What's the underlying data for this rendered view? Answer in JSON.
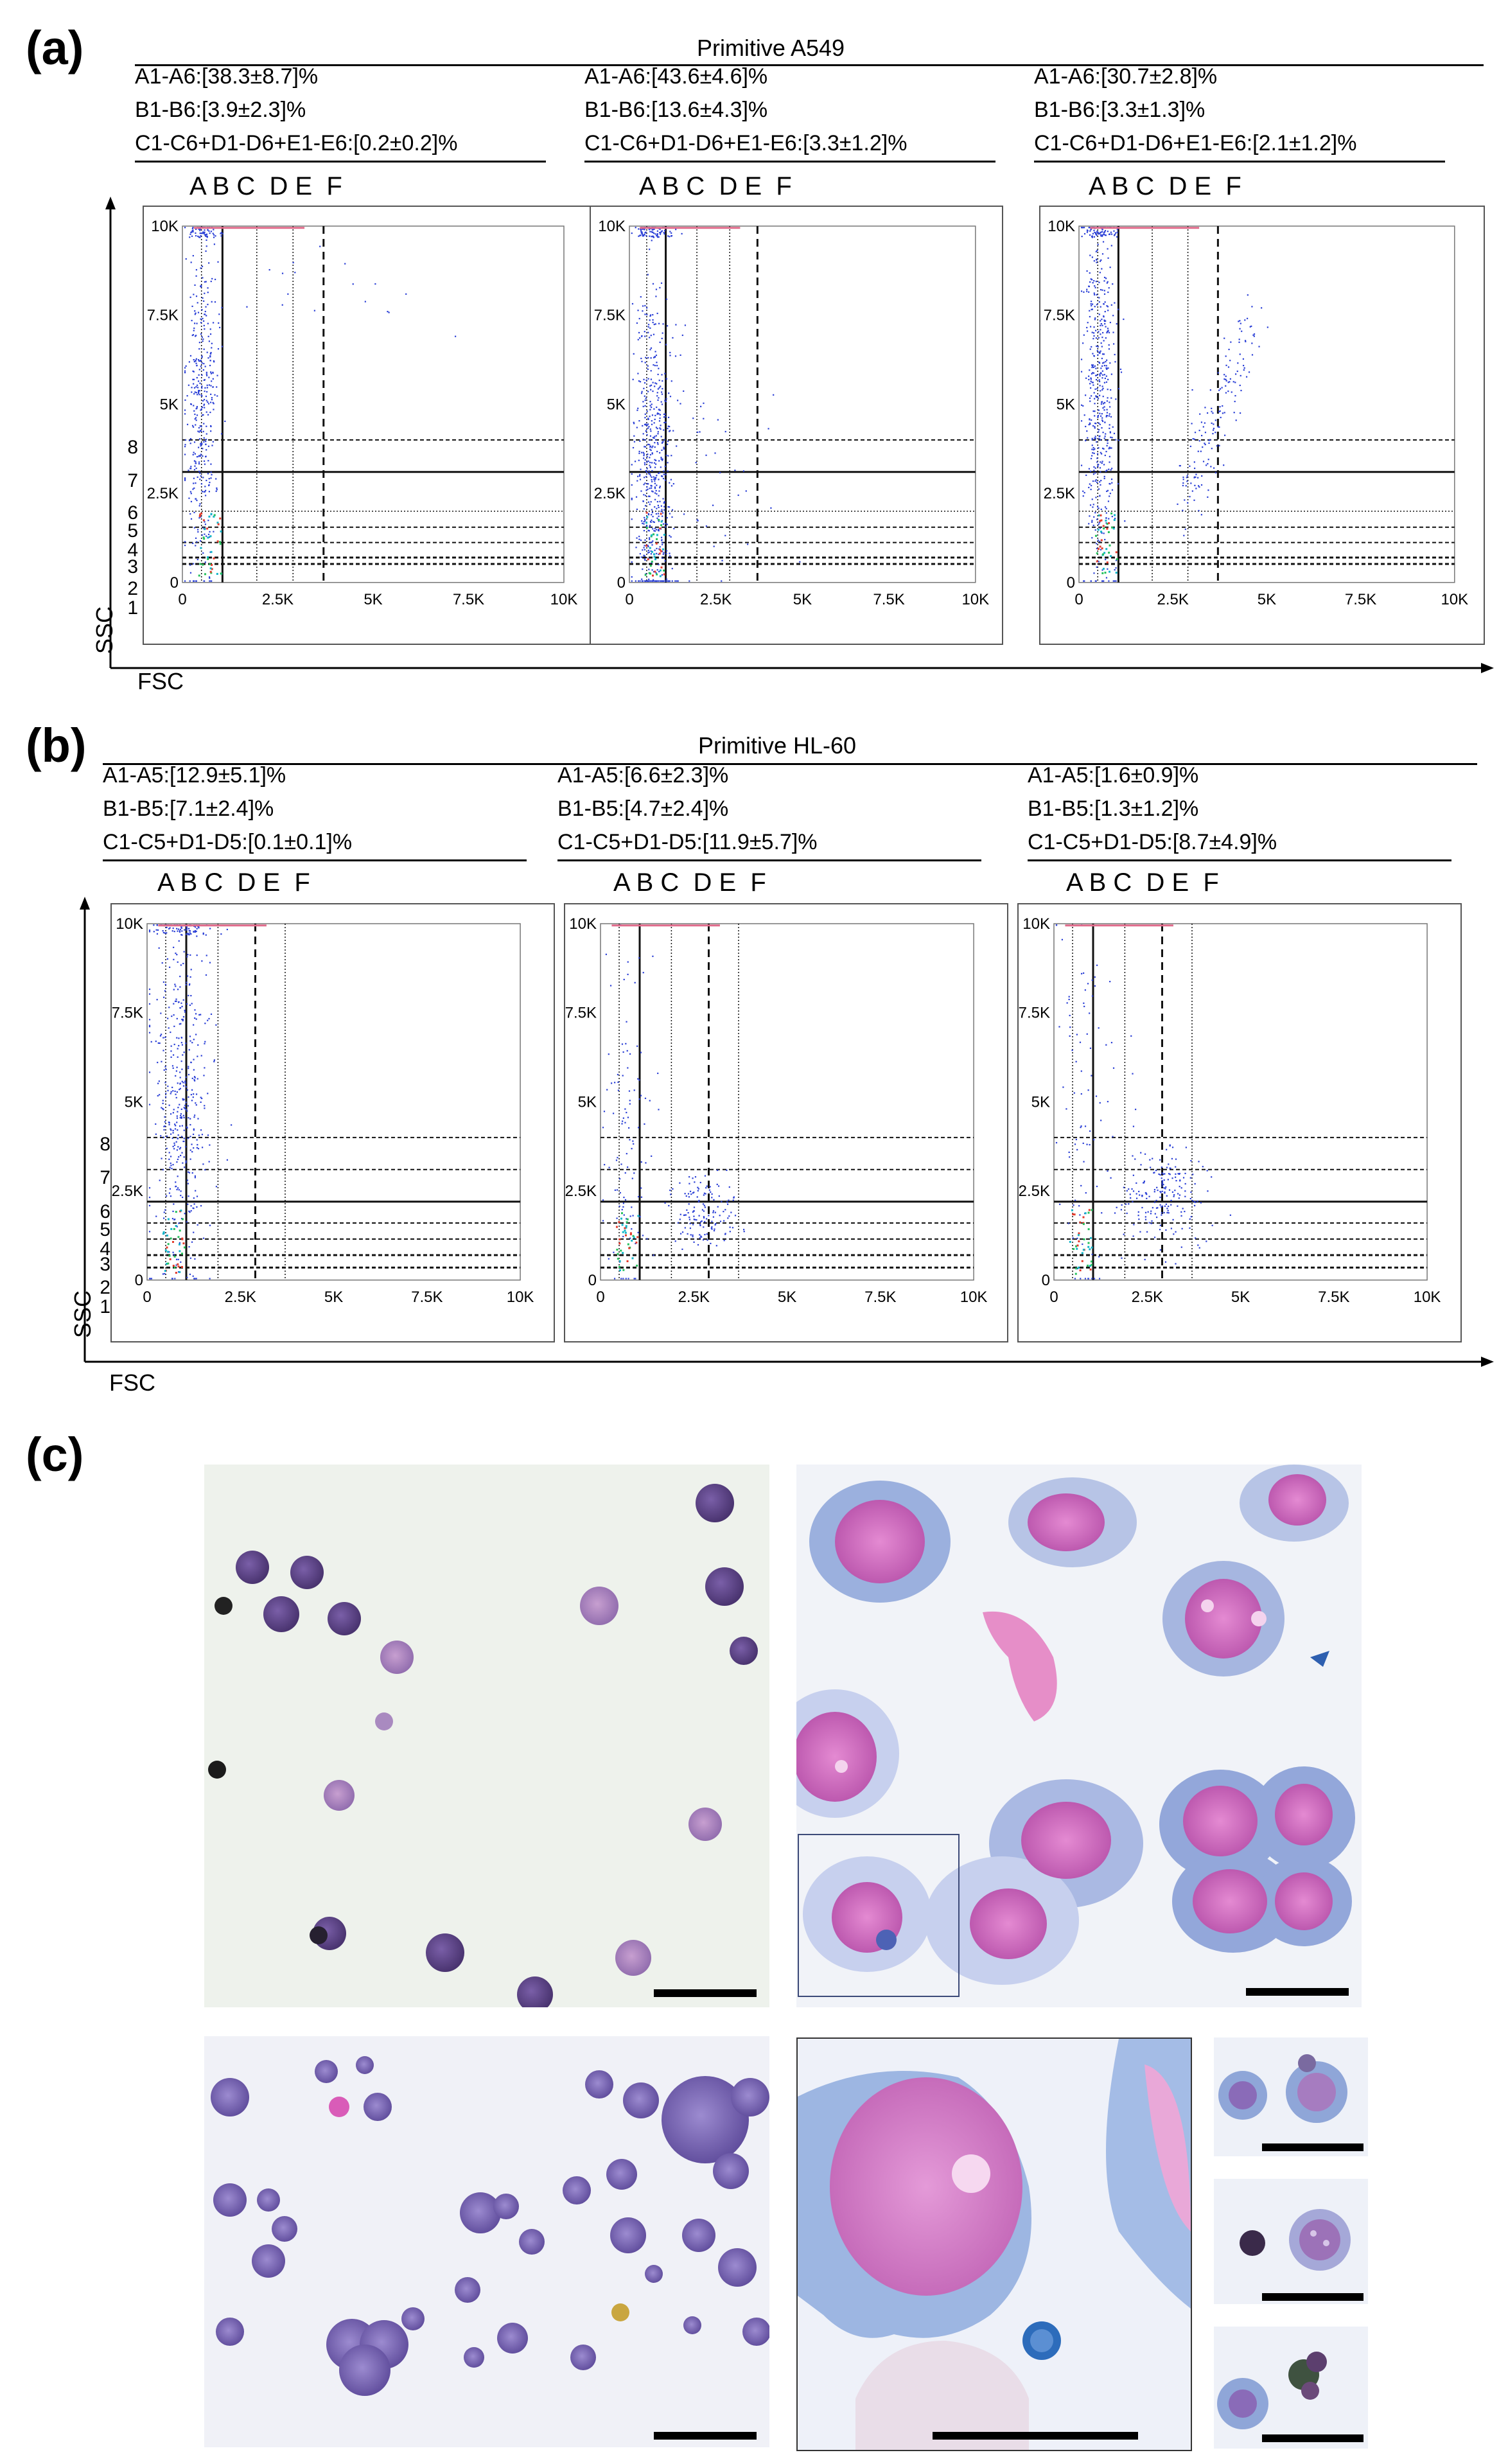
{
  "panels": {
    "a": {
      "letter": "(a)",
      "title": "Primitive A549",
      "columns": "A B C  D E  F",
      "plots": [
        {
          "stats": [
            "A1-A6:[38.3±8.7]%",
            "B1-B6:[3.9±2.3]%",
            "C1-C6+D1-D6+E1-E6:[0.2±0.2]%"
          ]
        },
        {
          "stats": [
            "A1-A6:[43.6±4.6]%",
            "B1-B6:[13.6±4.3]%",
            "C1-C6+D1-D6+E1-E6:[3.3±1.2]%"
          ]
        },
        {
          "stats": [
            "A1-A6:[30.7±2.8]%",
            "B1-B6:[3.3±1.3]%",
            "C1-C6+D1-D6+E1-E6:[2.1±1.2]%"
          ]
        }
      ],
      "row_labels": [
        "8",
        "7",
        "6",
        "5",
        "4",
        "3",
        "2",
        "1"
      ],
      "y_axis": "SSC",
      "x_axis": "FSC"
    },
    "b": {
      "letter": "(b)",
      "title": "Primitive HL-60",
      "columns": "A B C  D E  F",
      "plots": [
        {
          "stats": [
            "A1-A5:[12.9±5.1]%",
            "B1-B5:[7.1±2.4]%",
            "C1-C5+D1-D5:[0.1±0.1]%"
          ]
        },
        {
          "stats": [
            "A1-A5:[6.6±2.3]%",
            "B1-B5:[4.7±2.4]%",
            "C1-C5+D1-D5:[11.9±5.7]%"
          ]
        },
        {
          "stats": [
            "A1-A5:[1.6±0.9]%",
            "B1-B5:[1.3±1.2]%",
            "C1-C5+D1-D5:[8.7±4.9]%"
          ]
        }
      ],
      "row_labels": [
        "8",
        "7",
        "6",
        "5",
        "4",
        "3",
        "2",
        "1"
      ],
      "y_axis": "SSC",
      "x_axis": "FSC"
    },
    "c": {
      "letter": "(c)"
    }
  },
  "chart_data": [
    {
      "type": "scatter",
      "title": "Primitive A549",
      "xlabel": "FSC",
      "ylabel": "SSC",
      "xlim": [
        0,
        10000
      ],
      "ylim": [
        0,
        10000
      ],
      "xticks": [
        "0",
        "2.5K",
        "5K",
        "7.5K",
        "10K"
      ],
      "yticks": [
        "0",
        "2.5K",
        "5K",
        "7.5K",
        "10K"
      ],
      "series": [
        {
          "name": "A1-A6",
          "value": "38.3±8.7 %"
        },
        {
          "name": "B1-B6",
          "value": "3.9±2.3 %"
        },
        {
          "name": "C1-C6+D1-D6+E1-E6",
          "value": "0.2±0.2 %"
        }
      ]
    },
    {
      "type": "scatter",
      "title": "Primitive A549",
      "xlabel": "FSC",
      "ylabel": "SSC",
      "xlim": [
        0,
        10000
      ],
      "ylim": [
        0,
        10000
      ],
      "series": [
        {
          "name": "A1-A6",
          "value": "43.6±4.6 %"
        },
        {
          "name": "B1-B6",
          "value": "13.6±4.3 %"
        },
        {
          "name": "C1-C6+D1-D6+E1-E6",
          "value": "3.3±1.2 %"
        }
      ]
    },
    {
      "type": "scatter",
      "title": "Primitive A549",
      "xlabel": "FSC",
      "ylabel": "SSC",
      "xlim": [
        0,
        10000
      ],
      "ylim": [
        0,
        10000
      ],
      "series": [
        {
          "name": "A1-A6",
          "value": "30.7±2.8 %"
        },
        {
          "name": "B1-B6",
          "value": "3.3±1.3 %"
        },
        {
          "name": "C1-C6+D1-D6+E1-E6",
          "value": "2.1±1.2 %"
        }
      ]
    },
    {
      "type": "scatter",
      "title": "Primitive HL-60",
      "xlabel": "FSC",
      "ylabel": "SSC",
      "xlim": [
        0,
        10000
      ],
      "ylim": [
        0,
        10000
      ],
      "series": [
        {
          "name": "A1-A5",
          "value": "12.9±5.1 %"
        },
        {
          "name": "B1-B5",
          "value": "7.1±2.4 %"
        },
        {
          "name": "C1-C5+D1-D5",
          "value": "0.1±0.1 %"
        }
      ]
    },
    {
      "type": "scatter",
      "title": "Primitive HL-60",
      "xlabel": "FSC",
      "ylabel": "SSC",
      "xlim": [
        0,
        10000
      ],
      "ylim": [
        0,
        10000
      ],
      "series": [
        {
          "name": "A1-A5",
          "value": "6.6±2.3 %"
        },
        {
          "name": "B1-B5",
          "value": "4.7±2.4 %"
        },
        {
          "name": "C1-C5+D1-D5",
          "value": "11.9±5.7 %"
        }
      ]
    },
    {
      "type": "scatter",
      "title": "Primitive HL-60",
      "xlabel": "FSC",
      "ylabel": "SSC",
      "xlim": [
        0,
        10000
      ],
      "ylim": [
        0,
        10000
      ],
      "series": [
        {
          "name": "A1-A5",
          "value": "1.6±0.9 %"
        },
        {
          "name": "B1-B5",
          "value": "1.3±1.2 %"
        },
        {
          "name": "C1-C5+D1-D5",
          "value": "8.7±4.9 %"
        }
      ]
    }
  ],
  "ticks": {
    "x": [
      "0",
      "2.5K",
      "5K",
      "7.5K",
      "10K"
    ],
    "y": [
      "0",
      "2.5K",
      "5K",
      "7.5K",
      "10K"
    ]
  },
  "colors": {
    "dots": "#2a3fd6",
    "bg_micro_left": "#eef2ec",
    "bg_micro_right": "#f1f3f8",
    "stain_purple": "#6e4f9e",
    "stain_pink": "#d76fc0",
    "stain_blue": "#8fa6d8"
  }
}
